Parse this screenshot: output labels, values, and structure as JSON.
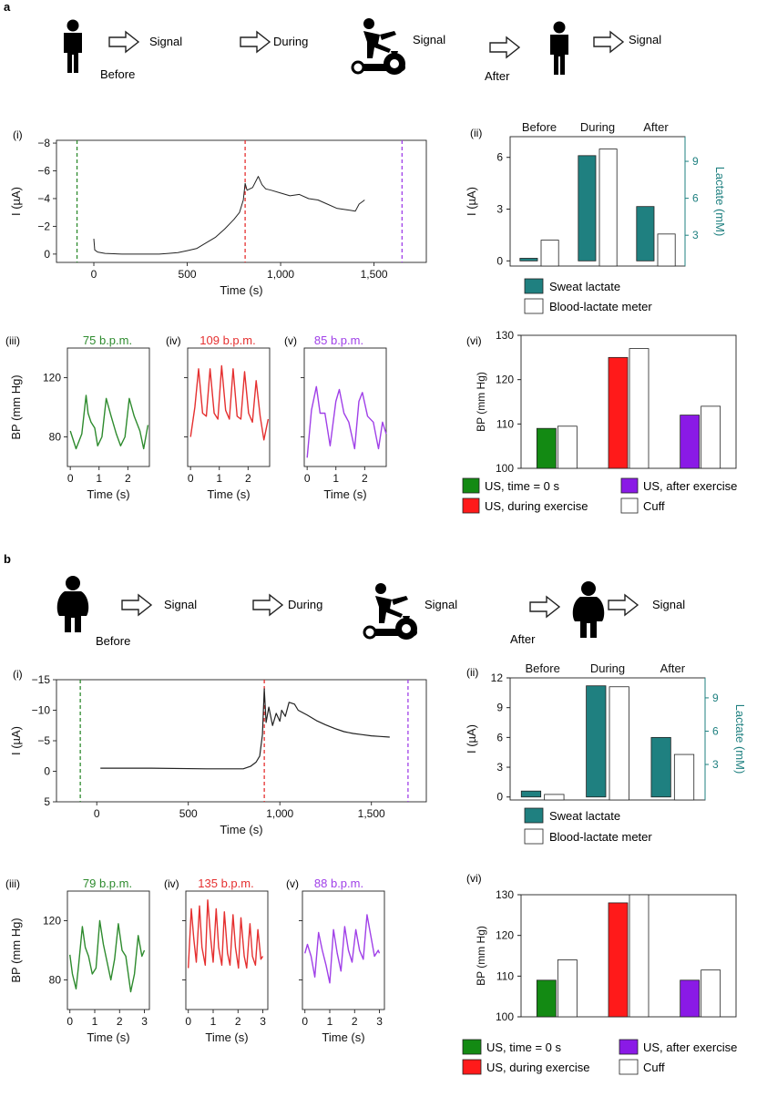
{
  "colors": {
    "green": "#2e8b2e",
    "red": "#e53030",
    "purple": "#a040e8",
    "teal": "#1f8080",
    "bar_green": "#138a13",
    "bar_red": "#ff1a1a",
    "bar_purple": "#8a1ae6",
    "axis": "#222222"
  },
  "panels": {
    "a": {
      "label": "a",
      "schematic": {
        "before": "Before",
        "during": "During",
        "after": "After",
        "signal_1": "Signal",
        "signal_2": "Signal",
        "signal_3": "Signal"
      },
      "roman": {
        "i": "(i)",
        "ii": "(ii)",
        "iii": "(iii)",
        "iv": "(iv)",
        "v": "(v)",
        "vi": "(vi)"
      },
      "hr": {
        "iii": "75 b.p.m.",
        "iv": "109 b.p.m.",
        "v": "85 b.p.m."
      },
      "legend_lactate": {
        "sweat": "Sweat lactate",
        "blood": "Blood-lactate meter"
      },
      "legend_bp": {
        "us0": "US, time = 0 s",
        "usdur": "US, during exercise",
        "usafter": "US, after exercise",
        "cuff": "Cuff"
      }
    },
    "b": {
      "label": "b",
      "schematic": {
        "before": "Before",
        "during": "During",
        "after": "After",
        "signal_1": "Signal",
        "signal_2": "Signal",
        "signal_3": "Signal"
      },
      "roman": {
        "i": "(i)",
        "ii": "(ii)",
        "iii": "(iii)",
        "iv": "(iv)",
        "v": "(v)",
        "vi": "(vi)"
      },
      "hr": {
        "iii": "79 b.p.m.",
        "iv": "135 b.p.m.",
        "v": "88 b.p.m."
      },
      "legend_lactate": {
        "sweat": "Sweat lactate",
        "blood": "Blood-lactate meter"
      },
      "legend_bp": {
        "us0": "US, time = 0 s",
        "usdur": "US, during exercise",
        "usafter": "US, after exercise",
        "cuff": "Cuff"
      }
    }
  },
  "chart_data": [
    {
      "id": "a-i",
      "type": "line",
      "title": "",
      "xlabel": "Time (s)",
      "ylabel": "I (µA)",
      "xlim": [
        -200,
        1780
      ],
      "ylim": [
        0.6,
        -8.2
      ],
      "xticks": [
        0,
        500,
        1000,
        1500
      ],
      "xtick_labels": [
        "0",
        "500",
        "1,000",
        "1,500"
      ],
      "yticks": [
        -8,
        -6,
        -4,
        -2,
        0
      ],
      "ytick_labels": [
        "−8",
        "−6",
        "−4",
        "−2",
        "0"
      ],
      "markers": [
        {
          "x": -90,
          "color": "green"
        },
        {
          "x": 810,
          "color": "red"
        },
        {
          "x": 1650,
          "color": "purple"
        }
      ],
      "series": [
        {
          "name": "current",
          "x": [
            0,
            5,
            20,
            60,
            150,
            250,
            350,
            400,
            450,
            500,
            550,
            600,
            650,
            700,
            750,
            780,
            800,
            810,
            820,
            850,
            880,
            900,
            920,
            950,
            1000,
            1050,
            1100,
            1150,
            1200,
            1250,
            1300,
            1350,
            1400,
            1420,
            1440,
            1450
          ],
          "y": [
            -1.1,
            -0.3,
            -0.15,
            -0.05,
            0,
            0,
            0,
            -0.05,
            -0.1,
            -0.25,
            -0.4,
            -0.8,
            -1.2,
            -1.8,
            -2.5,
            -3.0,
            -3.9,
            -5.1,
            -4.6,
            -4.8,
            -5.6,
            -5.0,
            -4.7,
            -4.6,
            -4.4,
            -4.2,
            -4.3,
            -4.0,
            -3.9,
            -3.6,
            -3.3,
            -3.2,
            -3.1,
            -3.6,
            -3.8,
            -3.9
          ]
        }
      ]
    },
    {
      "id": "a-ii",
      "type": "bar",
      "categories": [
        "Before",
        "During",
        "After"
      ],
      "xlabel": "",
      "ylabel": "I (µA)",
      "ylabel_right": "Lactate (mM)",
      "ylim": [
        -0.3,
        7.2
      ],
      "yticks": [
        0,
        3,
        6
      ],
      "ylim_right": [
        0.5,
        11
      ],
      "yticks_right": [
        3,
        6,
        9
      ],
      "series": [
        {
          "name": "Sweat lactate",
          "axis": "left",
          "values": [
            0.15,
            6.1,
            3.15
          ]
        },
        {
          "name": "Blood-lactate meter",
          "axis": "right",
          "values": [
            2.6,
            10.0,
            3.1
          ]
        }
      ]
    },
    {
      "id": "a-iii",
      "type": "line",
      "title": "75 b.p.m.",
      "xlabel": "Time (s)",
      "ylabel": "BP (mm Hg)",
      "xlim": [
        -0.1,
        2.75
      ],
      "ylim": [
        60,
        140
      ],
      "xticks": [
        0,
        1,
        2
      ],
      "yticks": [
        80,
        120
      ],
      "series": [
        {
          "name": "BP",
          "x": [
            0.0,
            0.2,
            0.4,
            0.55,
            0.62,
            0.72,
            0.85,
            0.95,
            1.1,
            1.25,
            1.42,
            1.6,
            1.75,
            1.9,
            2.05,
            2.22,
            2.42,
            2.55,
            2.7
          ],
          "y": [
            84,
            72,
            82,
            108,
            96,
            90,
            86,
            74,
            80,
            106,
            94,
            82,
            74,
            80,
            106,
            94,
            84,
            72,
            88
          ]
        }
      ]
    },
    {
      "id": "a-iv",
      "type": "line",
      "title": "109 b.p.m.",
      "xlabel": "Time (s)",
      "ylabel": "",
      "xlim": [
        -0.1,
        2.75
      ],
      "ylim": [
        60,
        140
      ],
      "xticks": [
        0,
        1,
        2
      ],
      "yticks": [
        80,
        120
      ],
      "series": [
        {
          "name": "BP",
          "x": [
            0.0,
            0.15,
            0.28,
            0.42,
            0.55,
            0.68,
            0.82,
            0.95,
            1.08,
            1.22,
            1.35,
            1.48,
            1.62,
            1.75,
            1.88,
            2.02,
            2.15,
            2.28,
            2.42,
            2.55,
            2.7
          ],
          "y": [
            80,
            100,
            126,
            96,
            94,
            126,
            96,
            92,
            128,
            98,
            92,
            126,
            94,
            92,
            124,
            96,
            90,
            118,
            94,
            78,
            92
          ]
        }
      ]
    },
    {
      "id": "a-v",
      "type": "line",
      "title": "85 b.p.m.",
      "xlabel": "Time (s)",
      "ylabel": "",
      "xlim": [
        -0.1,
        2.75
      ],
      "ylim": [
        60,
        140
      ],
      "xticks": [
        0,
        1,
        2
      ],
      "yticks": [
        80,
        120
      ],
      "series": [
        {
          "name": "BP",
          "x": [
            0.0,
            0.15,
            0.32,
            0.45,
            0.62,
            0.8,
            1.0,
            1.12,
            1.28,
            1.45,
            1.65,
            1.8,
            1.92,
            2.1,
            2.3,
            2.48,
            2.62,
            2.75
          ],
          "y": [
            66,
            98,
            114,
            96,
            96,
            74,
            104,
            112,
            96,
            90,
            72,
            104,
            110,
            94,
            90,
            72,
            90,
            82
          ]
        }
      ]
    },
    {
      "id": "a-vi",
      "type": "bar",
      "categories": [
        "time = 0 s",
        "during exercise",
        "after exercise"
      ],
      "xlabel": "",
      "ylabel": "BP (mm Hg)",
      "ylim": [
        100,
        130
      ],
      "yticks": [
        100,
        110,
        120,
        130
      ],
      "series": [
        {
          "name": "US",
          "values": [
            109,
            125,
            112
          ]
        },
        {
          "name": "Cuff",
          "values": [
            109.5,
            127,
            114
          ]
        }
      ]
    },
    {
      "id": "b-i",
      "type": "line",
      "title": "",
      "xlabel": "Time (s)",
      "ylabel": "I (µA)",
      "xlim": [
        -220,
        1800
      ],
      "ylim": [
        5,
        -15
      ],
      "xticks": [
        0,
        500,
        1000,
        1500
      ],
      "xtick_labels": [
        "0",
        "500",
        "1,000",
        "1,500"
      ],
      "yticks": [
        -15,
        -10,
        -5,
        0,
        5
      ],
      "ytick_labels": [
        "−15",
        "−10",
        "−5",
        "0",
        "5"
      ],
      "markers": [
        {
          "x": -90,
          "color": "green"
        },
        {
          "x": 915,
          "color": "red"
        },
        {
          "x": 1700,
          "color": "purple"
        }
      ],
      "series": [
        {
          "name": "current",
          "x": [
            20,
            300,
            600,
            800,
            840,
            870,
            890,
            905,
            915,
            925,
            940,
            960,
            980,
            1000,
            1010,
            1030,
            1050,
            1080,
            1100,
            1150,
            1200,
            1250,
            1300,
            1350,
            1400,
            1450,
            1500,
            1550,
            1600
          ],
          "y": [
            -0.5,
            -0.5,
            -0.4,
            -0.4,
            -0.8,
            -1.5,
            -2.5,
            -6,
            -13.5,
            -8,
            -10.5,
            -7.5,
            -9.5,
            -8.2,
            -10,
            -9,
            -11.3,
            -11,
            -10,
            -9.2,
            -8.3,
            -7.6,
            -7,
            -6.5,
            -6.2,
            -6,
            -5.8,
            -5.7,
            -5.6
          ]
        }
      ]
    },
    {
      "id": "b-ii",
      "type": "bar",
      "categories": [
        "Before",
        "During",
        "After"
      ],
      "xlabel": "",
      "ylabel": "I (µA)",
      "ylabel_right": "Lactate (mM)",
      "ylim": [
        -0.3,
        12
      ],
      "yticks": [
        0,
        3,
        6,
        9,
        12
      ],
      "ylim_right": [
        -0.2,
        10.8
      ],
      "yticks_right": [
        3,
        6,
        9
      ],
      "series": [
        {
          "name": "Sweat lactate",
          "axis": "left",
          "values": [
            0.6,
            11.2,
            6.0
          ]
        },
        {
          "name": "Blood-lactate meter",
          "axis": "right",
          "values": [
            0.3,
            10.0,
            3.9
          ]
        }
      ]
    },
    {
      "id": "b-iii",
      "type": "line",
      "title": "79 b.p.m.",
      "xlabel": "Time (s)",
      "ylabel": "BP (mm Hg)",
      "xlim": [
        -0.1,
        3.2
      ],
      "ylim": [
        60,
        140
      ],
      "xticks": [
        0,
        1,
        2,
        3
      ],
      "yticks": [
        80,
        120
      ],
      "series": [
        {
          "name": "BP",
          "x": [
            0.0,
            0.1,
            0.25,
            0.35,
            0.5,
            0.62,
            0.75,
            0.9,
            1.05,
            1.2,
            1.35,
            1.5,
            1.65,
            1.8,
            1.95,
            2.1,
            2.25,
            2.45,
            2.6,
            2.75,
            2.9,
            3.0
          ],
          "y": [
            97,
            84,
            74,
            90,
            116,
            102,
            96,
            84,
            88,
            120,
            104,
            92,
            80,
            94,
            118,
            100,
            96,
            72,
            84,
            110,
            96,
            100
          ]
        }
      ]
    },
    {
      "id": "b-iv",
      "type": "line",
      "title": "135 b.p.m.",
      "xlabel": "Time (s)",
      "ylabel": "",
      "xlim": [
        -0.1,
        3.2
      ],
      "ylim": [
        60,
        140
      ],
      "xticks": [
        0,
        1,
        2,
        3
      ],
      "yticks": [
        80,
        120
      ],
      "series": [
        {
          "name": "BP",
          "x": [
            0.0,
            0.12,
            0.22,
            0.32,
            0.45,
            0.55,
            0.68,
            0.78,
            0.9,
            1.0,
            1.12,
            1.22,
            1.35,
            1.45,
            1.58,
            1.68,
            1.8,
            1.9,
            2.02,
            2.12,
            2.25,
            2.35,
            2.48,
            2.58,
            2.7,
            2.8,
            2.92,
            3.0
          ],
          "y": [
            88,
            128,
            108,
            92,
            130,
            102,
            90,
            134,
            108,
            92,
            128,
            102,
            90,
            126,
            98,
            90,
            124,
            102,
            88,
            122,
            96,
            88,
            118,
            96,
            90,
            114,
            94,
            96
          ]
        }
      ]
    },
    {
      "id": "b-v",
      "type": "line",
      "title": "88 b.p.m.",
      "xlabel": "Time (s)",
      "ylabel": "",
      "xlim": [
        -0.1,
        3.2
      ],
      "ylim": [
        60,
        140
      ],
      "xticks": [
        0,
        1,
        2,
        3
      ],
      "yticks": [
        80,
        120
      ],
      "series": [
        {
          "name": "BP",
          "x": [
            0.0,
            0.1,
            0.25,
            0.4,
            0.55,
            0.7,
            0.85,
            1.0,
            1.15,
            1.3,
            1.45,
            1.6,
            1.75,
            1.9,
            2.05,
            2.2,
            2.35,
            2.5,
            2.65,
            2.8,
            2.95,
            3.0
          ],
          "y": [
            98,
            104,
            96,
            82,
            112,
            100,
            90,
            78,
            114,
            98,
            86,
            116,
            100,
            92,
            114,
            100,
            94,
            124,
            110,
            96,
            100,
            98
          ]
        }
      ]
    },
    {
      "id": "b-vi",
      "type": "bar",
      "categories": [
        "time = 0 s",
        "during exercise",
        "after exercise"
      ],
      "xlabel": "",
      "ylabel": "BP (mm Hg)",
      "ylim": [
        100,
        130
      ],
      "yticks": [
        100,
        110,
        120,
        130
      ],
      "series": [
        {
          "name": "US",
          "values": [
            109,
            128,
            109
          ]
        },
        {
          "name": "Cuff",
          "values": [
            114,
            130,
            111.5
          ]
        }
      ]
    }
  ]
}
